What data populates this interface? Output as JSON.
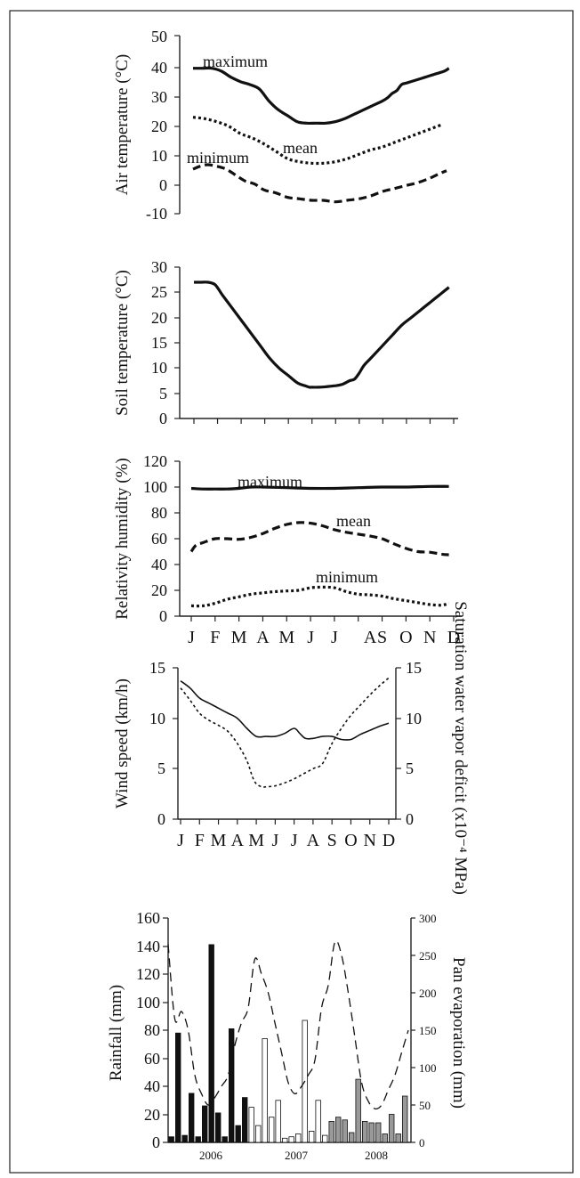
{
  "palette": {
    "ink": "#111111",
    "dark_bar": "#111111",
    "grey_bar": "#999999",
    "white_bar": "#ffffff"
  },
  "chart_data": [
    {
      "type": "line",
      "ylabel": "Air temperature (°C)",
      "ylim": [
        -10,
        50
      ],
      "yticks": [
        "50",
        "40",
        "30",
        "20",
        "10",
        "0",
        "-10"
      ],
      "x_months": [
        1,
        12
      ],
      "series": [
        {
          "name": "maximum",
          "style": "solid",
          "x": [
            1.0,
            1.4,
            1.8,
            2.2,
            2.6,
            3.0,
            3.4,
            3.8,
            4.2,
            4.6,
            5.0,
            5.4,
            5.8,
            6.2,
            6.6,
            7.0,
            7.4,
            7.8,
            8.2,
            8.6,
            9.0,
            9.2,
            9.4,
            9.6,
            9.8,
            10.0,
            10.4,
            10.8,
            11.2,
            11.6,
            11.8
          ],
          "values": [
            39,
            39,
            39,
            38,
            36,
            34.5,
            33.5,
            32,
            28,
            25,
            23,
            21,
            20.5,
            20.5,
            20.5,
            21,
            22,
            23.5,
            25,
            26.5,
            28,
            29,
            30.5,
            31.5,
            33.5,
            34,
            35,
            36,
            37,
            38,
            39
          ]
        },
        {
          "name": "mean",
          "style": "dotted",
          "x": [
            1.0,
            1.5,
            2.0,
            2.5,
            3.0,
            3.5,
            4.0,
            4.5,
            5.0,
            5.5,
            6.0,
            6.5,
            7.0,
            7.5,
            8.0,
            8.5,
            9.0,
            9.5,
            10.0,
            10.5,
            11.0,
            11.5
          ],
          "values": [
            22.5,
            22,
            21,
            19.5,
            17,
            15.5,
            13.5,
            11,
            8.5,
            7.5,
            7,
            7,
            7.5,
            8.5,
            10,
            11.5,
            12.5,
            14,
            15.5,
            17,
            18.5,
            20
          ]
        },
        {
          "name": "minimum",
          "style": "dashed",
          "x": [
            1.0,
            1.3,
            1.6,
            2.0,
            2.4,
            2.8,
            3.2,
            3.6,
            4.0,
            4.5,
            5.0,
            5.5,
            6.0,
            6.5,
            7.0,
            7.5,
            8.0,
            8.5,
            9.0,
            9.5,
            10.0,
            10.5,
            11.0,
            11.4,
            11.7
          ],
          "values": [
            5,
            6,
            6.5,
            6,
            5,
            3,
            1,
            0,
            -2,
            -3,
            -4.5,
            -5,
            -5.5,
            -5.5,
            -6,
            -5.5,
            -5,
            -4,
            -2.5,
            -1.5,
            -0.5,
            0.5,
            2,
            3.5,
            4.5
          ]
        }
      ],
      "annotations": [
        "maximum",
        "mean",
        "minimum"
      ]
    },
    {
      "type": "line",
      "ylabel": "Soil temperature (°C)",
      "ylim": [
        0,
        30
      ],
      "yticks": [
        "30",
        "25",
        "20",
        "15",
        "10",
        "5",
        "0"
      ],
      "x_months": [
        1,
        12
      ],
      "series": [
        {
          "name": "",
          "style": "solid",
          "x": [
            1.0,
            1.3,
            1.6,
            1.9,
            2.2,
            2.6,
            3.0,
            3.4,
            3.8,
            4.2,
            4.6,
            5.0,
            5.4,
            5.7,
            5.9,
            6.0,
            6.3,
            6.6,
            7.0,
            7.3,
            7.6,
            7.8,
            8.0,
            8.2,
            8.5,
            9.0,
            9.4,
            9.8,
            10.2,
            10.6,
            11.0,
            11.4,
            11.8
          ],
          "values": [
            27,
            27,
            27,
            26.5,
            24.5,
            22,
            19.5,
            17,
            14.5,
            12,
            10,
            8.5,
            7,
            6.5,
            6.2,
            6.2,
            6.2,
            6.3,
            6.5,
            6.8,
            7.5,
            7.8,
            9,
            10.5,
            12,
            14.5,
            16.5,
            18.5,
            20,
            21.5,
            23,
            24.5,
            26
          ]
        }
      ]
    },
    {
      "type": "line",
      "ylabel": "Relativity humidity (%)",
      "ylim": [
        0,
        120
      ],
      "yticks": [
        "120",
        "100",
        "80",
        "60",
        "40",
        "20",
        "0"
      ],
      "xticks": [
        "J",
        "F",
        "M",
        "A",
        "M",
        "J",
        "J",
        "A",
        "S",
        "O",
        "N",
        "D"
      ],
      "tick_months": [
        1,
        2,
        3,
        4,
        5,
        6,
        7,
        8.5,
        9,
        10,
        11,
        12
      ],
      "series": [
        {
          "name": "maximum",
          "style": "solid",
          "x": [
            1.0,
            1.5,
            2.0,
            2.5,
            3.0,
            3.5,
            4.0,
            5.0,
            6.0,
            7.0,
            8.0,
            9.0,
            10.0,
            11.0,
            11.8
          ],
          "values": [
            99,
            98.5,
            98.5,
            98.5,
            99,
            100,
            100,
            99.5,
            99,
            99,
            99.5,
            100,
            100,
            100.5,
            100.5
          ]
        },
        {
          "name": "mean",
          "style": "dashed",
          "x": [
            1.0,
            1.2,
            1.5,
            2.0,
            2.5,
            3.0,
            3.5,
            4.0,
            4.5,
            5.0,
            5.5,
            6.0,
            6.5,
            7.0,
            7.5,
            8.0,
            8.5,
            9.0,
            9.5,
            10.0,
            10.5,
            11.0,
            11.5,
            11.8
          ],
          "values": [
            50,
            55,
            57,
            60,
            60,
            59.5,
            61,
            64,
            68,
            71,
            72.5,
            72,
            70,
            67,
            65,
            63.5,
            62,
            60,
            56,
            52.5,
            50,
            49.5,
            48,
            47.5
          ]
        },
        {
          "name": "minimum",
          "style": "dotted",
          "x": [
            1.0,
            1.5,
            2.0,
            2.5,
            3.0,
            3.5,
            4.0,
            4.5,
            5.0,
            5.5,
            6.0,
            6.5,
            7.0,
            7.5,
            8.0,
            8.5,
            9.0,
            9.5,
            10.0,
            10.5,
            11.0,
            11.5,
            11.8
          ],
          "values": [
            8,
            8,
            10,
            13,
            15,
            17,
            18,
            19,
            19.5,
            20,
            22,
            22.5,
            22,
            19,
            17,
            16.5,
            15.5,
            13.5,
            12,
            10.5,
            9,
            8.5,
            10
          ]
        }
      ],
      "annotations": [
        "maximum",
        "mean",
        "minimum"
      ]
    },
    {
      "type": "line",
      "ylabel": "Wind speed (km/h)",
      "y2label": "Saturation water vapor deficit (x10⁻⁴ MPa)",
      "ylim": [
        0,
        15
      ],
      "y2lim": [
        0,
        15
      ],
      "yticks": [
        "15",
        "10",
        "5",
        "0"
      ],
      "y2ticks": [
        "15",
        "10",
        "5",
        "0"
      ],
      "xticks": [
        "J",
        "F",
        "M",
        "A",
        "M",
        "J",
        "J",
        "A",
        "S",
        "O",
        "N",
        "D"
      ],
      "series": [
        {
          "name": "",
          "style": "solid",
          "x": [
            1.0,
            1.5,
            2.0,
            2.5,
            3.0,
            3.5,
            4.0,
            4.5,
            5.0,
            5.5,
            6.0,
            6.5,
            7.0,
            7.3,
            7.6,
            8.0,
            8.5,
            9.0,
            9.5,
            10.0,
            10.5,
            11.0,
            11.5,
            12.0
          ],
          "values": [
            13.7,
            13,
            12,
            11.5,
            11,
            10.5,
            10,
            9,
            8.2,
            8.2,
            8.2,
            8.5,
            9,
            8.5,
            8,
            8,
            8.2,
            8.2,
            7.9,
            7.9,
            8.4,
            8.8,
            9.2,
            9.5
          ]
        },
        {
          "name": "",
          "style": "dotted",
          "axis": "right",
          "x": [
            1.0,
            1.5,
            2.0,
            2.5,
            3.0,
            3.5,
            4.0,
            4.5,
            4.8,
            5.0,
            5.3,
            5.5,
            6.0,
            6.5,
            7.0,
            7.5,
            8.0,
            8.5,
            9.0,
            9.5,
            10.0,
            10.5,
            11.0,
            11.5,
            12.0
          ],
          "values": [
            13,
            11.8,
            10.5,
            9.8,
            9.3,
            8.7,
            7.5,
            5.8,
            4.2,
            3.5,
            3.2,
            3.2,
            3.3,
            3.6,
            4,
            4.5,
            5,
            5.5,
            7.5,
            9,
            10.3,
            11.3,
            12.3,
            13.2,
            14
          ]
        }
      ]
    },
    {
      "type": "bar",
      "ylabel": "Rainfall (mm)",
      "y2label": "Pan evaporation (mm)",
      "ylim": [
        0,
        160
      ],
      "y2lim": [
        0,
        300
      ],
      "yticks": [
        "160",
        "140",
        "120",
        "100",
        "80",
        "60",
        "40",
        "20",
        "0"
      ],
      "y2ticks": [
        "300",
        "250",
        "200",
        "150",
        "100",
        "50",
        "0"
      ],
      "xticks": [
        "2006",
        "2007",
        "2008"
      ],
      "bar_groups": [
        {
          "name": "2006",
          "fill": "#111111",
          "values": [
            4,
            78,
            5,
            35,
            4,
            26,
            141,
            21,
            4,
            81,
            12,
            32
          ]
        },
        {
          "name": "2007",
          "fill": "#ffffff",
          "values": [
            25,
            12,
            74,
            18,
            30,
            3,
            4,
            6,
            87,
            8,
            30,
            5
          ]
        },
        {
          "name": "2008",
          "fill": "#999999",
          "values": [
            15,
            18,
            16,
            7,
            45,
            15,
            14,
            14,
            6,
            20,
            6,
            33
          ]
        }
      ],
      "evaporation": {
        "style": "dashed",
        "values": [
          265,
          165,
          175,
          150,
          90,
          65,
          50,
          60,
          75,
          90,
          130,
          160,
          180,
          245,
          225,
          200,
          160,
          120,
          80,
          65,
          75,
          90,
          110,
          180,
          210,
          268,
          250,
          200,
          140,
          80,
          55,
          45,
          50,
          70,
          90,
          120,
          150
        ]
      }
    }
  ]
}
